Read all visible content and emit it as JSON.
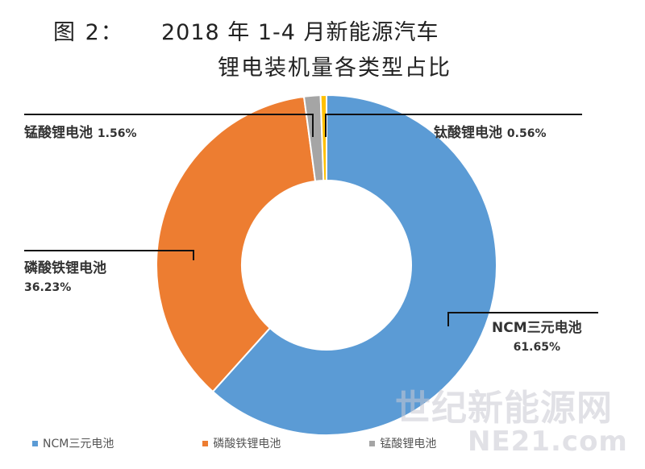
{
  "title": {
    "prefix": "图 2：",
    "line1": "2018 年 1-4 月新能源汽车",
    "line2": "锂电装机量各类型占比"
  },
  "chart_data": {
    "type": "pie",
    "variant": "donut",
    "title": "2018 年 1-4 月新能源汽车锂电装机量各类型占比",
    "slices": [
      {
        "name": "NCM三元电池",
        "label": "NCM三元电池",
        "value": 61.65,
        "pct_text": "61.65%",
        "color": "#5b9bd5"
      },
      {
        "name": "磷酸铁锂电池",
        "label": "磷酸铁锂电池",
        "value": 36.23,
        "pct_text": "36.23%",
        "color": "#ed7d31"
      },
      {
        "name": "锰酸锂电池",
        "label": "锰酸锂电池",
        "value": 1.56,
        "pct_text": "1.56%",
        "color": "#a5a5a5"
      },
      {
        "name": "钛酸锂电池",
        "label": "钛酸锂电池",
        "value": 0.56,
        "pct_text": "0.56%",
        "color": "#ffc000"
      }
    ],
    "legend_position": "bottom"
  },
  "watermark": {
    "line1": "世纪新能源网",
    "line2": "NE21.com"
  }
}
